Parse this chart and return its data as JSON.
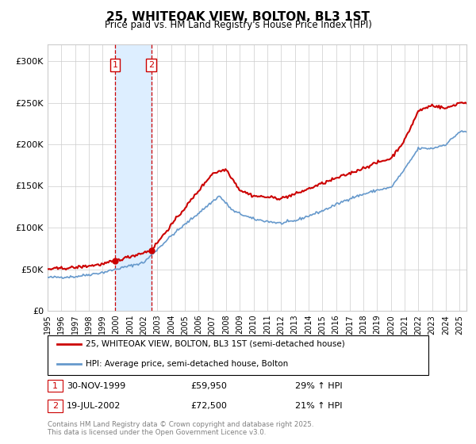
{
  "title": "25, WHITEOAK VIEW, BOLTON, BL3 1ST",
  "subtitle": "Price paid vs. HM Land Registry's House Price Index (HPI)",
  "legend_line1": "25, WHITEOAK VIEW, BOLTON, BL3 1ST (semi-detached house)",
  "legend_line2": "HPI: Average price, semi-detached house, Bolton",
  "footnote": "Contains HM Land Registry data © Crown copyright and database right 2025.\nThis data is licensed under the Open Government Licence v3.0.",
  "transaction1_date": "30-NOV-1999",
  "transaction1_price": 59950,
  "transaction1_label": "29% ↑ HPI",
  "transaction2_date": "19-JUL-2002",
  "transaction2_price": 72500,
  "transaction2_label": "21% ↑ HPI",
  "sale1_x": 1999.92,
  "sale2_x": 2002.54,
  "shade_x1": 1999.92,
  "shade_x2": 2002.54,
  "red_line_color": "#cc0000",
  "blue_line_color": "#6699cc",
  "shade_color": "#ddeeff",
  "dashed_line_color": "#cc0000",
  "background_color": "#ffffff",
  "grid_color": "#cccccc",
  "ylim": [
    0,
    320000
  ],
  "xlim_start": 1995,
  "xlim_end": 2025.5
}
